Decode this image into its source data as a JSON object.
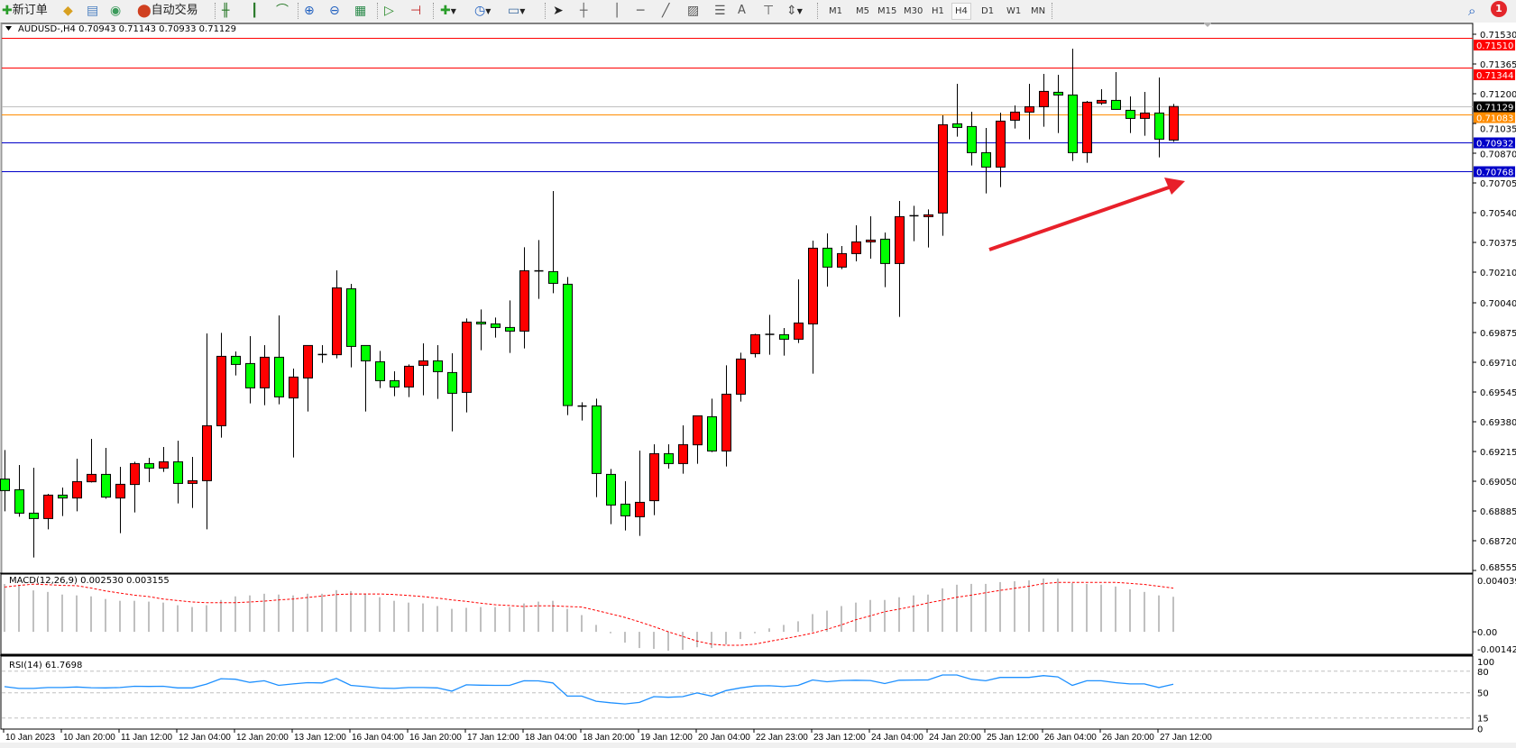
{
  "toolbar": {
    "new_order_label": "新订单",
    "autotrade_label": "自动交易",
    "icons": [
      "new-order-icon",
      "gold-bars-icon",
      "terminal-icon",
      "signals-icon",
      "autotrading-icon",
      "bar-chart-icon",
      "candlestick-icon",
      "line-chart-icon",
      "zoom-in-icon",
      "zoom-out-icon",
      "tile-windows-icon",
      "autoscroll-icon",
      "chart-shift-icon",
      "new-chart-icon",
      "periods-clock-icon",
      "templates-icon",
      "cursor-icon",
      "crosshair-icon",
      "vertical-line-icon",
      "horizontal-line-icon",
      "trendline-icon",
      "equidistant-channel-icon",
      "fibonacci-icon",
      "text-icon",
      "text-label-icon",
      "arrows-icon",
      "search-icon",
      "notification-icon"
    ],
    "text_tool": "A",
    "timeframes": [
      "M1",
      "M5",
      "M15",
      "M30",
      "H1",
      "H4",
      "D1",
      "W1",
      "MN"
    ],
    "active_timeframe": "H4",
    "notification_count": "1"
  },
  "chart": {
    "symbol_line": "AUDUSD-,H4  0.70943 0.71143 0.70933 0.71129",
    "bull_color": "#ff0000",
    "bear_color": "#00ff00"
  },
  "chart_data": [
    {
      "type": "candlestick",
      "symbol": "AUDUSD-",
      "timeframe": "H4",
      "ylim": [
        0.68555,
        0.7153
      ],
      "price_ticks": [
        "0.71530",
        "0.71365",
        "0.71200",
        "0.71035",
        "0.70870",
        "0.70705",
        "0.70540",
        "0.70375",
        "0.70210",
        "0.70040",
        "0.69875",
        "0.69710",
        "0.69545",
        "0.69380",
        "0.69215",
        "0.69050",
        "0.68885",
        "0.68720",
        "0.68555"
      ],
      "time_labels": [
        "10 Jan 2023",
        "10 Jan 20:00",
        "11 Jan 12:00",
        "12 Jan 04:00",
        "12 Jan 20:00",
        "13 Jan 12:00",
        "16 Jan 04:00",
        "16 Jan 20:00",
        "17 Jan 12:00",
        "18 Jan 04:00",
        "18 Jan 20:00",
        "19 Jan 12:00",
        "20 Jan 04:00",
        "22 Jan 23:00",
        "23 Jan 12:00",
        "24 Jan 04:00",
        "24 Jan 20:00",
        "25 Jan 12:00",
        "26 Jan 04:00",
        "26 Jan 20:00",
        "27 Jan 12:00"
      ],
      "levels": [
        {
          "price": "0.71510",
          "color": "#ff0000"
        },
        {
          "price": "0.71344",
          "color": "#ff0000"
        },
        {
          "price": "0.71129",
          "color": "#c0c0c0",
          "label_bg": "#000000"
        },
        {
          "price": "0.71083",
          "color": "#ff8c00"
        },
        {
          "price": "0.70932",
          "color": "#0000c8"
        },
        {
          "price": "0.70768",
          "color": "#0000c8"
        }
      ],
      "candles": [
        {
          "o": 0.69062,
          "h": 0.69223,
          "l": 0.68883,
          "c": 0.68998
        },
        {
          "o": 0.69003,
          "h": 0.6914,
          "l": 0.68853,
          "c": 0.68873
        },
        {
          "o": 0.68873,
          "h": 0.69125,
          "l": 0.68627,
          "c": 0.68843
        },
        {
          "o": 0.68843,
          "h": 0.6898,
          "l": 0.68783,
          "c": 0.68973
        },
        {
          "o": 0.68973,
          "h": 0.69015,
          "l": 0.68857,
          "c": 0.68957
        },
        {
          "o": 0.68957,
          "h": 0.69175,
          "l": 0.68883,
          "c": 0.69048
        },
        {
          "o": 0.69047,
          "h": 0.69285,
          "l": 0.69043,
          "c": 0.69088
        },
        {
          "o": 0.69088,
          "h": 0.69235,
          "l": 0.68953,
          "c": 0.68962
        },
        {
          "o": 0.68957,
          "h": 0.6913,
          "l": 0.68762,
          "c": 0.69033
        },
        {
          "o": 0.69032,
          "h": 0.69158,
          "l": 0.68877,
          "c": 0.69148
        },
        {
          "o": 0.69148,
          "h": 0.6918,
          "l": 0.69045,
          "c": 0.69123
        },
        {
          "o": 0.69123,
          "h": 0.6924,
          "l": 0.69102,
          "c": 0.69158
        },
        {
          "o": 0.69158,
          "h": 0.69275,
          "l": 0.68927,
          "c": 0.69038
        },
        {
          "o": 0.69038,
          "h": 0.69185,
          "l": 0.68902,
          "c": 0.69053
        },
        {
          "o": 0.69053,
          "h": 0.6987,
          "l": 0.68783,
          "c": 0.69358
        },
        {
          "o": 0.69358,
          "h": 0.69873,
          "l": 0.69292,
          "c": 0.69743
        },
        {
          "o": 0.69743,
          "h": 0.6977,
          "l": 0.69637,
          "c": 0.69698
        },
        {
          "o": 0.69703,
          "h": 0.69855,
          "l": 0.69482,
          "c": 0.69568
        },
        {
          "o": 0.69568,
          "h": 0.69805,
          "l": 0.69472,
          "c": 0.69738
        },
        {
          "o": 0.69738,
          "h": 0.6997,
          "l": 0.69477,
          "c": 0.69518
        },
        {
          "o": 0.69512,
          "h": 0.69675,
          "l": 0.69182,
          "c": 0.69628
        },
        {
          "o": 0.69623,
          "h": 0.69803,
          "l": 0.69437,
          "c": 0.69803
        },
        {
          "o": 0.69753,
          "h": 0.69805,
          "l": 0.69707,
          "c": 0.69753
        },
        {
          "o": 0.69752,
          "h": 0.7022,
          "l": 0.69732,
          "c": 0.70123
        },
        {
          "o": 0.70118,
          "h": 0.70145,
          "l": 0.69682,
          "c": 0.69798
        },
        {
          "o": 0.69803,
          "h": 0.69803,
          "l": 0.69437,
          "c": 0.69718
        },
        {
          "o": 0.69713,
          "h": 0.69773,
          "l": 0.69567,
          "c": 0.69608
        },
        {
          "o": 0.69608,
          "h": 0.6966,
          "l": 0.69522,
          "c": 0.69573
        },
        {
          "o": 0.69573,
          "h": 0.69698,
          "l": 0.69517,
          "c": 0.69688
        },
        {
          "o": 0.69693,
          "h": 0.69815,
          "l": 0.69527,
          "c": 0.69718
        },
        {
          "o": 0.69718,
          "h": 0.69805,
          "l": 0.69507,
          "c": 0.69658
        },
        {
          "o": 0.69653,
          "h": 0.6976,
          "l": 0.69327,
          "c": 0.69538
        },
        {
          "o": 0.69543,
          "h": 0.69953,
          "l": 0.69432,
          "c": 0.69933
        },
        {
          "o": 0.69933,
          "h": 0.70003,
          "l": 0.69777,
          "c": 0.69923
        },
        {
          "o": 0.69923,
          "h": 0.69958,
          "l": 0.69847,
          "c": 0.69903
        },
        {
          "o": 0.69903,
          "h": 0.70053,
          "l": 0.69762,
          "c": 0.69883
        },
        {
          "o": 0.69883,
          "h": 0.70348,
          "l": 0.69787,
          "c": 0.70218
        },
        {
          "o": 0.70217,
          "h": 0.70388,
          "l": 0.70062,
          "c": 0.70217
        },
        {
          "o": 0.70213,
          "h": 0.7066,
          "l": 0.70093,
          "c": 0.70148
        },
        {
          "o": 0.70143,
          "h": 0.70183,
          "l": 0.69417,
          "c": 0.6947
        },
        {
          "o": 0.69467,
          "h": 0.69488,
          "l": 0.69387,
          "c": 0.69467
        },
        {
          "o": 0.69468,
          "h": 0.69508,
          "l": 0.68962,
          "c": 0.69093
        },
        {
          "o": 0.69088,
          "h": 0.69118,
          "l": 0.68812,
          "c": 0.68918
        },
        {
          "o": 0.68923,
          "h": 0.6905,
          "l": 0.68777,
          "c": 0.68858
        },
        {
          "o": 0.68853,
          "h": 0.6922,
          "l": 0.68747,
          "c": 0.68933
        },
        {
          "o": 0.68942,
          "h": 0.69255,
          "l": 0.68862,
          "c": 0.69203
        },
        {
          "o": 0.69203,
          "h": 0.69255,
          "l": 0.6912,
          "c": 0.69148
        },
        {
          "o": 0.69148,
          "h": 0.6936,
          "l": 0.69092,
          "c": 0.69253
        },
        {
          "o": 0.69252,
          "h": 0.69413,
          "l": 0.69147,
          "c": 0.69413
        },
        {
          "o": 0.69408,
          "h": 0.69508,
          "l": 0.69212,
          "c": 0.69218
        },
        {
          "o": 0.69218,
          "h": 0.69693,
          "l": 0.69132,
          "c": 0.69533
        },
        {
          "o": 0.69533,
          "h": 0.69763,
          "l": 0.69492,
          "c": 0.69728
        },
        {
          "o": 0.69758,
          "h": 0.69868,
          "l": 0.69737,
          "c": 0.69863
        },
        {
          "o": 0.69865,
          "h": 0.69973,
          "l": 0.69752,
          "c": 0.69865
        },
        {
          "o": 0.69863,
          "h": 0.699,
          "l": 0.69747,
          "c": 0.69838
        },
        {
          "o": 0.69838,
          "h": 0.7017,
          "l": 0.69817,
          "c": 0.69928
        },
        {
          "o": 0.69923,
          "h": 0.70385,
          "l": 0.69647,
          "c": 0.70343
        },
        {
          "o": 0.70343,
          "h": 0.70425,
          "l": 0.7013,
          "c": 0.70238
        },
        {
          "o": 0.70238,
          "h": 0.70355,
          "l": 0.70227,
          "c": 0.70313
        },
        {
          "o": 0.70313,
          "h": 0.7047,
          "l": 0.7027,
          "c": 0.70378
        },
        {
          "o": 0.70378,
          "h": 0.7052,
          "l": 0.70285,
          "c": 0.70388
        },
        {
          "o": 0.70393,
          "h": 0.7043,
          "l": 0.70127,
          "c": 0.70258
        },
        {
          "o": 0.70258,
          "h": 0.70605,
          "l": 0.69962,
          "c": 0.70518
        },
        {
          "o": 0.70523,
          "h": 0.70578,
          "l": 0.70382,
          "c": 0.70523
        },
        {
          "o": 0.70518,
          "h": 0.70558,
          "l": 0.70347,
          "c": 0.70528
        },
        {
          "o": 0.70538,
          "h": 0.7108,
          "l": 0.70412,
          "c": 0.71028
        },
        {
          "o": 0.71033,
          "h": 0.71255,
          "l": 0.70962,
          "c": 0.71013
        },
        {
          "o": 0.71018,
          "h": 0.711,
          "l": 0.70802,
          "c": 0.70873
        },
        {
          "o": 0.70873,
          "h": 0.7101,
          "l": 0.70647,
          "c": 0.70793
        },
        {
          "o": 0.70793,
          "h": 0.71095,
          "l": 0.70682,
          "c": 0.71048
        },
        {
          "o": 0.71053,
          "h": 0.71135,
          "l": 0.71007,
          "c": 0.71098
        },
        {
          "o": 0.71098,
          "h": 0.71255,
          "l": 0.70947,
          "c": 0.71128
        },
        {
          "o": 0.71128,
          "h": 0.7131,
          "l": 0.71017,
          "c": 0.71213
        },
        {
          "o": 0.71208,
          "h": 0.71305,
          "l": 0.70982,
          "c": 0.71193
        },
        {
          "o": 0.71193,
          "h": 0.7145,
          "l": 0.70827,
          "c": 0.70873
        },
        {
          "o": 0.70873,
          "h": 0.7116,
          "l": 0.70817,
          "c": 0.71153
        },
        {
          "o": 0.71148,
          "h": 0.71225,
          "l": 0.71138,
          "c": 0.71163
        },
        {
          "o": 0.71163,
          "h": 0.7132,
          "l": 0.71113,
          "c": 0.71113
        },
        {
          "o": 0.71108,
          "h": 0.71185,
          "l": 0.70982,
          "c": 0.71063
        },
        {
          "o": 0.71063,
          "h": 0.7121,
          "l": 0.70967,
          "c": 0.71093
        },
        {
          "o": 0.71093,
          "h": 0.7129,
          "l": 0.70847,
          "c": 0.70948
        },
        {
          "o": 0.70943,
          "h": 0.71143,
          "l": 0.70933,
          "c": 0.71129
        }
      ],
      "annotation_arrow_color": "#e8202a"
    },
    {
      "type": "bar",
      "label": "MACD(12,26,9) 0.002530 0.003155",
      "ylim": [
        -0.001424,
        0.004039
      ],
      "y_ticks": [
        "0.004039",
        "0.00",
        "-0.001424"
      ],
      "histogram_color": "#c0c0c0",
      "signal_color": "#ff0000",
      "macd": [
        0.00345,
        0.0034,
        0.00299,
        0.00288,
        0.00269,
        0.00263,
        0.00256,
        0.00237,
        0.00224,
        0.00224,
        0.00218,
        0.00211,
        0.00192,
        0.00179,
        0.00192,
        0.0023,
        0.00256,
        0.00263,
        0.00275,
        0.00269,
        0.00263,
        0.00275,
        0.00275,
        0.00301,
        0.00294,
        0.00275,
        0.0025,
        0.00224,
        0.00211,
        0.00205,
        0.00186,
        0.00166,
        0.00173,
        0.00179,
        0.00179,
        0.00179,
        0.00205,
        0.00218,
        0.00224,
        0.00166,
        0.00121,
        0.0005,
        -0.0001,
        -0.00078,
        -0.00117,
        -0.00123,
        -0.00136,
        -0.0013,
        -0.00111,
        -0.00117,
        -0.00091,
        -0.00052,
        -0.0001,
        0.00025,
        0.0005,
        0.00076,
        0.00128,
        0.00153,
        0.00186,
        0.00211,
        0.0023,
        0.0023,
        0.0025,
        0.00263,
        0.00269,
        0.00314,
        0.0034,
        0.00346,
        0.00346,
        0.00359,
        0.00365,
        0.00372,
        0.00385,
        0.00385,
        0.00352,
        0.00346,
        0.0034,
        0.00327,
        0.00307,
        0.00288,
        0.00263,
        0.00253
      ],
      "signal": [
        0.00323,
        0.00335,
        0.00344,
        0.0034,
        0.00335,
        0.00333,
        0.00316,
        0.00295,
        0.0028,
        0.00265,
        0.00254,
        0.00237,
        0.00226,
        0.00215,
        0.00211,
        0.00211,
        0.00211,
        0.00215,
        0.00222,
        0.0023,
        0.00237,
        0.00248,
        0.00258,
        0.00269,
        0.00273,
        0.00273,
        0.00273,
        0.00269,
        0.00263,
        0.00254,
        0.00243,
        0.0023,
        0.0022,
        0.00207,
        0.00196,
        0.0019,
        0.00183,
        0.00188,
        0.00188,
        0.00183,
        0.00179,
        0.00155,
        0.0013,
        0.00104,
        0.00072,
        0.00038,
        1e-05,
        -0.00033,
        -0.00067,
        -0.00089,
        -0.00097,
        -0.00097,
        -0.00089,
        -0.00069,
        -0.0005,
        -0.00031,
        -9e-05,
        0.00018,
        0.0005,
        0.00087,
        0.00115,
        0.00145,
        0.00164,
        0.00185,
        0.00209,
        0.00228,
        0.0025,
        0.00265,
        0.00282,
        0.00299,
        0.00314,
        0.00329,
        0.00348,
        0.00357,
        0.00357,
        0.00357,
        0.00357,
        0.00357,
        0.0035,
        0.00342,
        0.00329,
        0.003155
      ]
    },
    {
      "type": "line",
      "label": "RSI(14) 61.7698",
      "ylim": [
        0,
        100
      ],
      "y_ticks": [
        "100",
        "80",
        "50",
        "15",
        "0"
      ],
      "levels": [
        80,
        50,
        15
      ],
      "line_color": "#1e90ff",
      "values": [
        58.5,
        56,
        56,
        57.3,
        57.3,
        58,
        57,
        56.8,
        57.3,
        59,
        58.8,
        59,
        56.8,
        56.8,
        62,
        69.5,
        68.7,
        64.4,
        66.6,
        60.2,
        62.3,
        64,
        63.6,
        69.9,
        60.2,
        58.5,
        56.5,
        56,
        57.3,
        57.3,
        56.8,
        52.2,
        61,
        60.5,
        60.2,
        60.2,
        66.6,
        66.5,
        63.6,
        45.4,
        45.4,
        38.3,
        36.1,
        34.5,
        36.6,
        44.6,
        43.8,
        44.6,
        49.7,
        45.4,
        53,
        56.8,
        59.4,
        59.8,
        58.5,
        60.2,
        67.8,
        65.3,
        67,
        67.4,
        67,
        62.8,
        67.4,
        67.6,
        67.8,
        74.6,
        74.6,
        68.7,
        66.6,
        71.2,
        71.2,
        71.2,
        73.7,
        72,
        60.2,
        66.6,
        66.6,
        64,
        62.3,
        62.3,
        57.3,
        61.77
      ]
    }
  ]
}
